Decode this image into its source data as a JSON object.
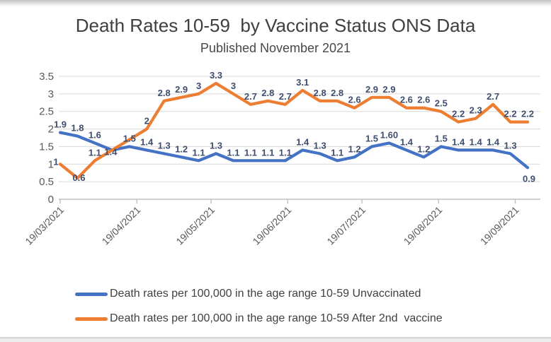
{
  "title": "Death Rates 10-59  by Vaccine Status ONS Data",
  "subtitle": "Published November 2021",
  "legend": {
    "entries": [
      {
        "label": "Death rates per 100,000 in the age range 10-59 Unvaccinated",
        "color": "#4472C4"
      },
      {
        "label": "Death rates per 100,000 in the age range 10-59 After 2nd  vaccine",
        "color": "#ED7D31"
      }
    ]
  },
  "chart_data": {
    "type": "line",
    "title": "Death Rates 10-59  by Vaccine Status ONS Data",
    "subtitle": "Published November 2021",
    "x_tick_labels": [
      "19/03/2021",
      "19/04/2021",
      "19/05/2021",
      "19/06/2021",
      "19/07/2021",
      "19/08/2021",
      "19/09/2021"
    ],
    "n_points": 28,
    "ylim": [
      0,
      3.5
    ],
    "y_ticks": [
      0,
      0.5,
      1,
      1.5,
      2,
      2.5,
      3,
      3.5
    ],
    "y_tick_labels": [
      "0",
      "0.5",
      "1",
      "1.5",
      "2",
      "2.5",
      "3",
      "3.5"
    ],
    "grid": true,
    "legend_position": "bottom",
    "series": [
      {
        "name": "Death rates per 100,000 in the age range 10-59 Unvaccinated",
        "color": "#4472C4",
        "values": [
          1.9,
          1.8,
          1.6,
          1.4,
          1.5,
          1.4,
          1.3,
          1.2,
          1.1,
          1.3,
          1.1,
          1.1,
          1.1,
          1.1,
          1.4,
          1.3,
          1.1,
          1.2,
          1.5,
          1.6,
          1.4,
          1.2,
          1.5,
          1.4,
          1.4,
          1.4,
          1.3,
          0.9
        ],
        "labels": [
          "1.9",
          "1.8",
          "1.6",
          "1.4",
          "1.5",
          "1.4",
          "1.3",
          "1.2",
          "1.1",
          "1.3",
          "1.1",
          "1.1",
          "1.1",
          "1.1",
          "1.4",
          "1.3",
          "1.1",
          "1.2",
          "1.5",
          "1.60",
          "1.4",
          "1.2",
          "1.5",
          "1.4",
          "1.4",
          "1.4",
          "1.3",
          "0.9"
        ]
      },
      {
        "name": "Death rates per 100,000 in the age range 10-59 After 2nd  vaccine",
        "color": "#ED7D31",
        "values": [
          1,
          0.6,
          1.1,
          1.4,
          1.7,
          2,
          2.8,
          2.9,
          3,
          3.3,
          3,
          2.7,
          2.8,
          2.7,
          3.1,
          2.8,
          2.8,
          2.6,
          2.9,
          2.9,
          2.6,
          2.6,
          2.5,
          2.2,
          2.3,
          2.7,
          2.2,
          2.2
        ],
        "labels": [
          "1",
          "0.6",
          "1.1",
          "",
          "",
          "2",
          "2.8",
          "2.9",
          "3",
          "3.3",
          "3",
          "2.7",
          "2.8",
          "2.7",
          "3.1",
          "2.8",
          "2.8",
          "2.6",
          "2.9",
          "2.9",
          "2.6",
          "2.6",
          "2.5",
          "2.2",
          "2.3",
          "2.7",
          "2.2",
          "2.2"
        ]
      }
    ]
  }
}
